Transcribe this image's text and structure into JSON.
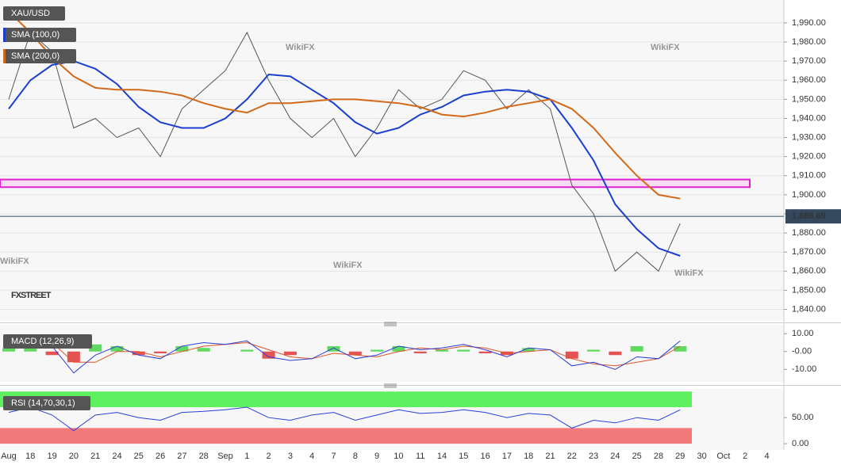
{
  "chart_data": [
    {
      "type": "line",
      "title": "XAU/USD",
      "series": [
        {
          "name": "XAU/USD",
          "color": "#555555",
          "values": [
            1950,
            1985,
            1975,
            1935,
            1940,
            1930,
            1935,
            1920,
            1945,
            1955,
            1965,
            1985,
            1960,
            1940,
            1930,
            1940,
            1920,
            1935,
            1955,
            1945,
            1950,
            1965,
            1960,
            1945,
            1955,
            1945,
            1905,
            1890,
            1860,
            1870,
            1860,
            1885,
            null,
            null,
            null,
            null
          ]
        },
        {
          "name": "SMA (100,0)",
          "color": "#1a3fd0",
          "values": [
            1945,
            1960,
            1968,
            1970,
            1966,
            1958,
            1946,
            1938,
            1935,
            1935,
            1940,
            1950,
            1963,
            1962,
            1955,
            1948,
            1938,
            1932,
            1935,
            1942,
            1946,
            1952,
            1954,
            1955,
            1954,
            1950,
            1935,
            1918,
            1895,
            1882,
            1872,
            1868,
            null,
            null,
            null,
            null
          ]
        },
        {
          "name": "SMA (200,0)",
          "color": "#d26a1a",
          "values": [
            1996,
            1985,
            1972,
            1962,
            1956,
            1955,
            1955,
            1954,
            1952,
            1948,
            1945,
            1943,
            1948,
            1948,
            1949,
            1950,
            1950,
            1949,
            1948,
            1946,
            1942,
            1941,
            1943,
            1946,
            1948,
            1950,
            1945,
            1935,
            1922,
            1910,
            1900,
            1898,
            null,
            null,
            null,
            null
          ]
        }
      ],
      "ylim": [
        1834,
        2002
      ],
      "yticks": [
        {
          "value": 1840,
          "label": "1,840.00"
        },
        {
          "value": 1850,
          "label": "1,850.00"
        },
        {
          "value": 1860,
          "label": "1,860.00"
        },
        {
          "value": 1870,
          "label": "1,870.00"
        },
        {
          "value": 1880,
          "label": "1,880.00"
        },
        {
          "value": 1890,
          "label": "1,890.00"
        },
        {
          "value": 1900,
          "label": "1,900.00"
        },
        {
          "value": 1910,
          "label": "1,910.00"
        },
        {
          "value": 1920,
          "label": "1,920.00"
        },
        {
          "value": 1930,
          "label": "1,930.00"
        },
        {
          "value": 1940,
          "label": "1,940.00"
        },
        {
          "value": 1950,
          "label": "1,950.00"
        },
        {
          "value": 1960,
          "label": "1,960.00"
        },
        {
          "value": 1970,
          "label": "1,970.00"
        },
        {
          "value": 1980,
          "label": "1,980.00"
        },
        {
          "value": 1990,
          "label": "1,990.00"
        }
      ],
      "last_price": {
        "value": 1888.69,
        "label": "1,888.69"
      },
      "band": [
        1904,
        1908
      ],
      "band_color": "#e020d0",
      "grid": true,
      "watermark": "WikiFX",
      "brand": "FXSTREET"
    },
    {
      "type": "macd",
      "title": "MACD (12,26,9)",
      "macd": [
        5,
        8,
        3,
        -12,
        -2,
        3,
        -2,
        -4,
        3,
        5,
        4,
        6,
        -3,
        -5,
        -4,
        2,
        -4,
        -2,
        3,
        1,
        2,
        4,
        1,
        -3,
        2,
        1,
        -8,
        -6,
        -10,
        -3,
        -4,
        6,
        null,
        null,
        null,
        null
      ],
      "signal": [
        3,
        6,
        5,
        -6,
        -6,
        0,
        0,
        -3,
        0,
        3,
        4,
        5,
        1,
        -3,
        -4,
        -1,
        -2,
        -3,
        0,
        2,
        1,
        3,
        2,
        -1,
        0,
        1,
        -4,
        -7,
        -8,
        -6,
        -4,
        3,
        null,
        null,
        null,
        null
      ],
      "histogram": [
        2,
        2,
        -2,
        -6,
        4,
        3,
        -2,
        -1,
        3,
        2,
        0,
        1,
        -4,
        -2,
        0,
        3,
        -2,
        1,
        3,
        -1,
        1,
        1,
        -1,
        -2,
        2,
        0,
        -4,
        1,
        -2,
        3,
        0,
        3,
        null,
        null,
        null,
        null
      ],
      "macd_color": "#2a3fd8",
      "signal_color": "#e0542a",
      "up_color": "#3ad13a",
      "down_color": "#e02a2a",
      "ylim": [
        -17,
        15
      ],
      "yticks": [
        {
          "value": 10,
          "label": "10.00"
        },
        {
          "value": 0,
          "label": "-0.00"
        },
        {
          "value": -10,
          "label": "-10.00"
        }
      ]
    },
    {
      "type": "rsi",
      "title": "RSI (14,70,30,1)",
      "categories": [
        "Aug",
        "18",
        "19",
        "20",
        "21",
        "24",
        "25",
        "26",
        "27",
        "28",
        "Sep",
        "1",
        "2",
        "3",
        "4",
        "7",
        "8",
        "9",
        "10",
        "11",
        "14",
        "15",
        "16",
        "17",
        "18",
        "21",
        "22",
        "23",
        "24",
        "25",
        "28",
        "29",
        "30",
        "Oct",
        "2",
        "4"
      ],
      "values": [
        60,
        70,
        55,
        25,
        55,
        60,
        50,
        45,
        60,
        62,
        65,
        70,
        50,
        45,
        55,
        60,
        45,
        55,
        65,
        58,
        60,
        65,
        60,
        50,
        58,
        55,
        30,
        45,
        40,
        50,
        45,
        65,
        null,
        null,
        null,
        null
      ],
      "color": "#2a3fd8",
      "upper_band": [
        70,
        100
      ],
      "upper_color": "#5ef05e",
      "lower_band": [
        0,
        30
      ],
      "lower_color": "#f27a7a",
      "ylim": [
        -12,
        105
      ],
      "yticks": [
        {
          "value": 50,
          "label": "50.00"
        },
        {
          "value": 0,
          "label": "0.00"
        }
      ]
    }
  ]
}
